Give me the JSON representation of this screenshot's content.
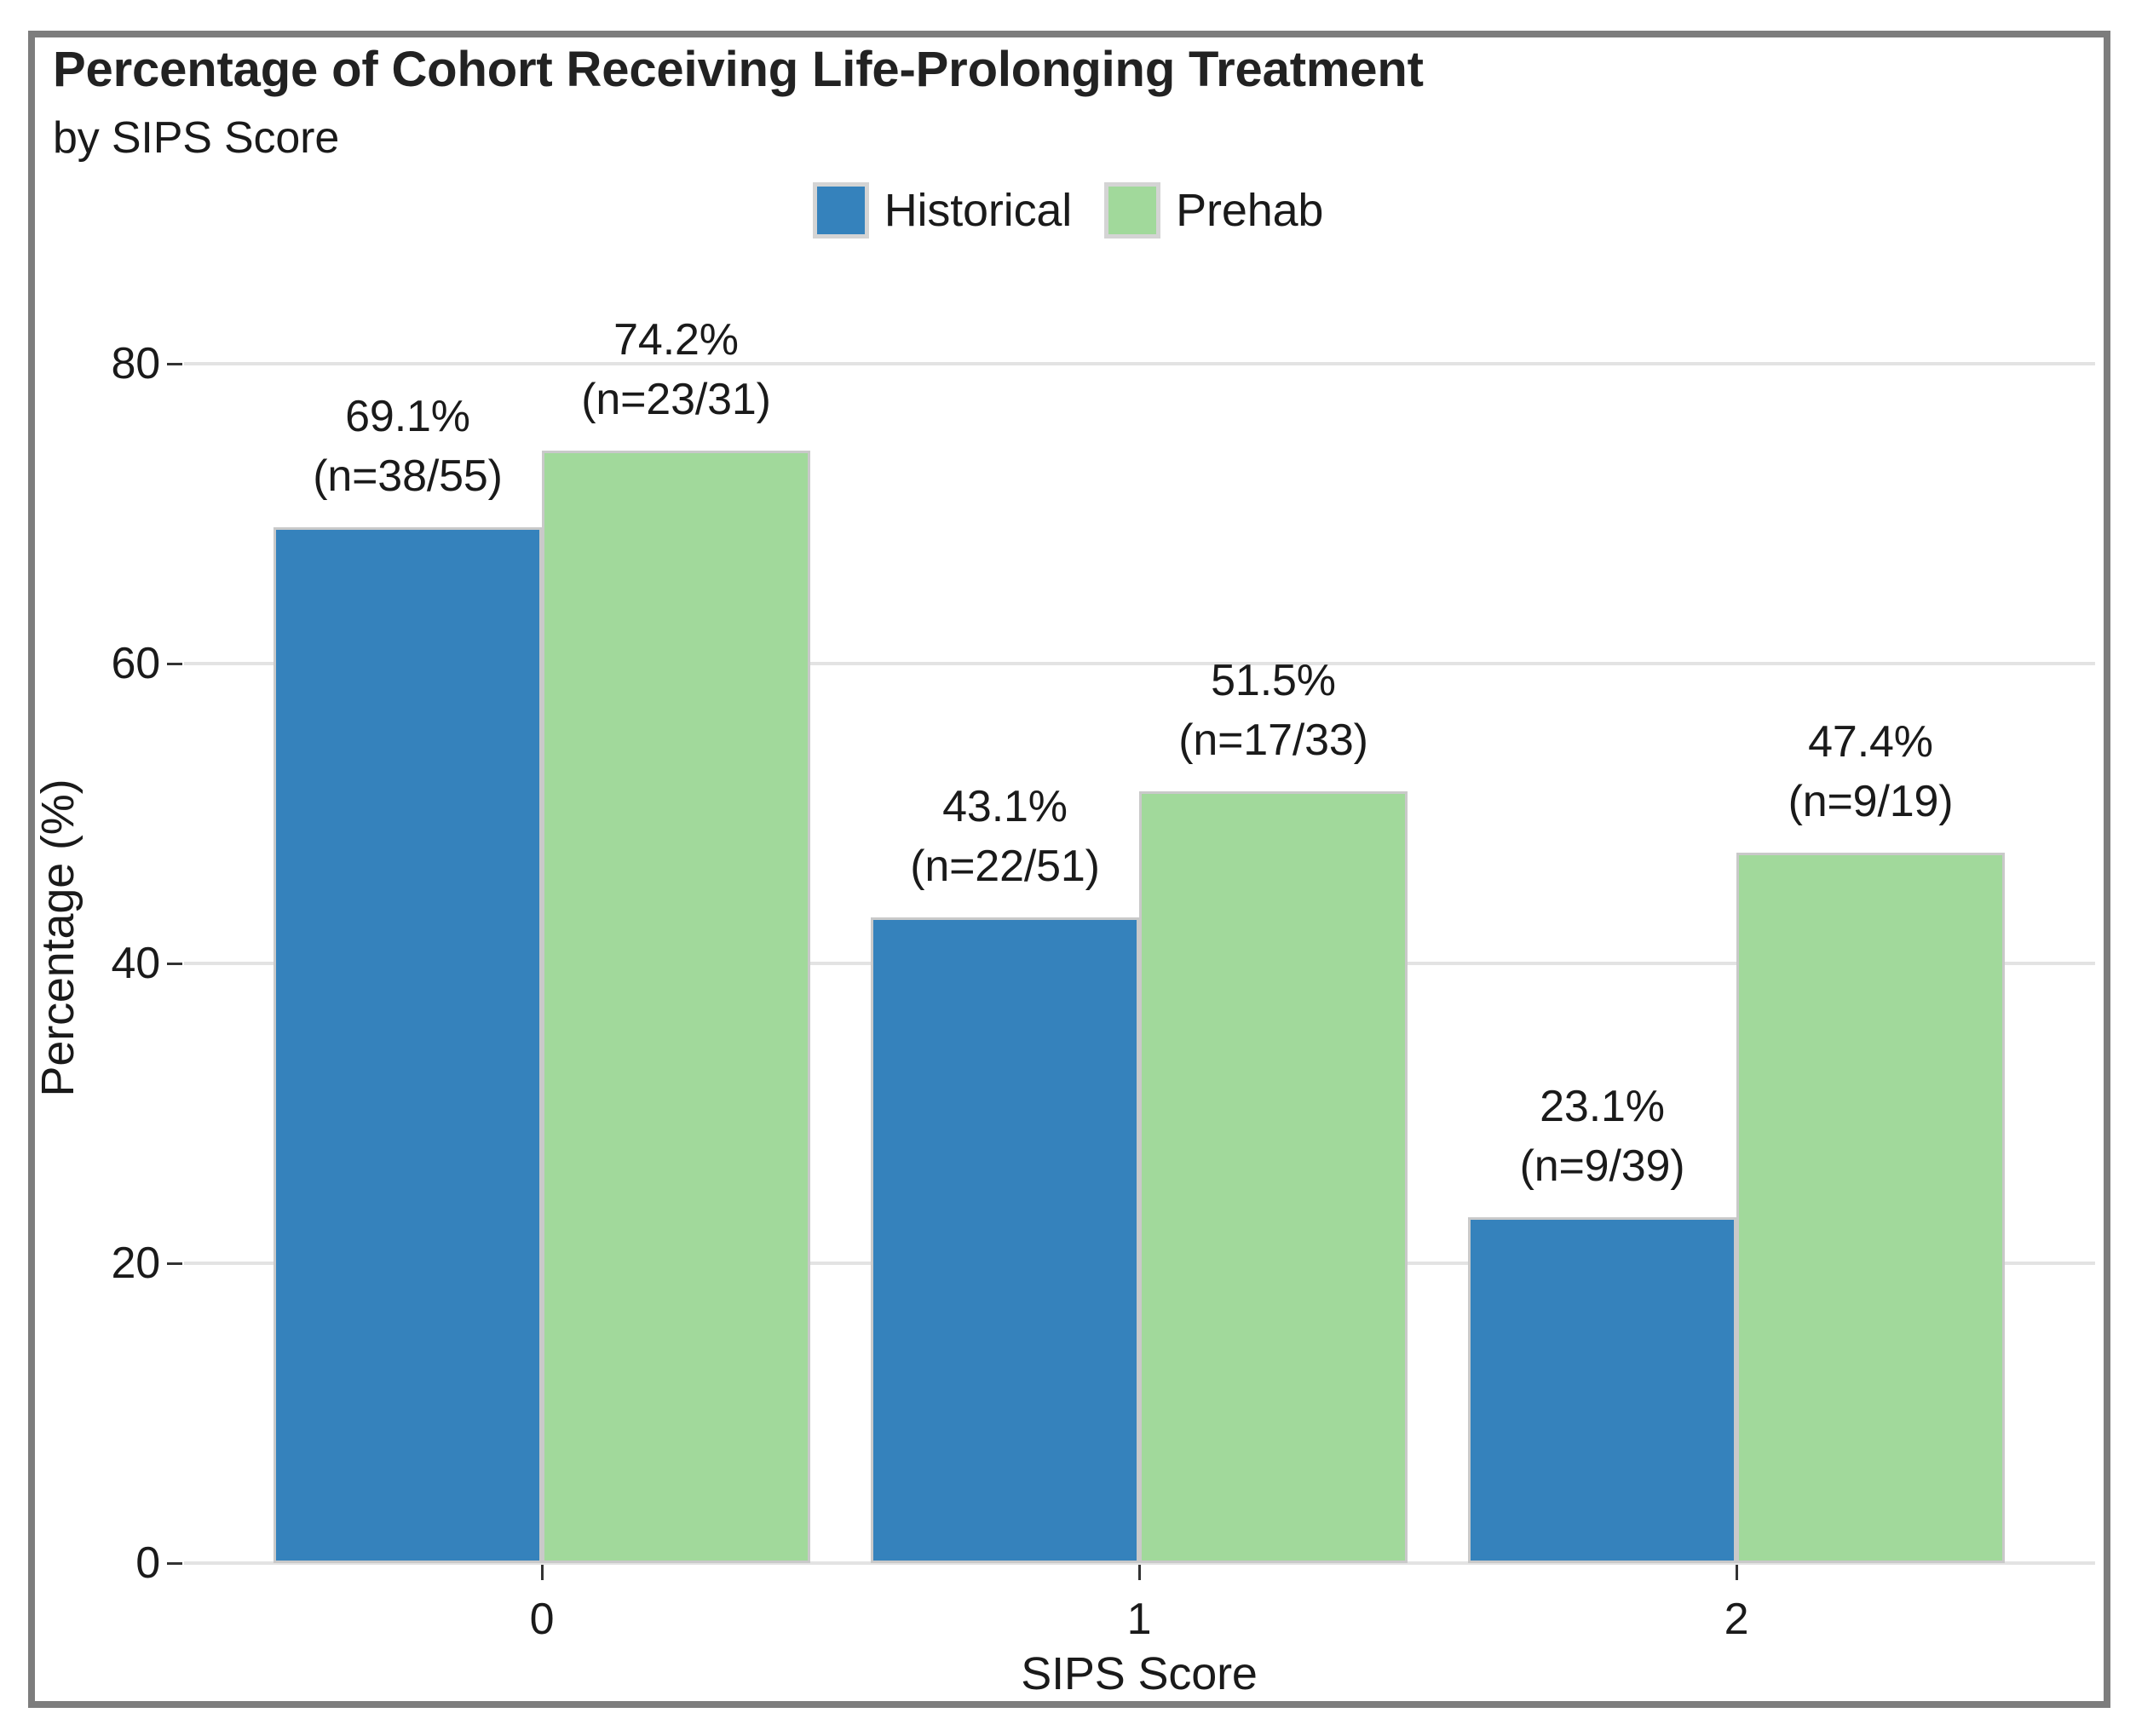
{
  "chart_data": {
    "type": "bar",
    "title": "Percentage of Cohort Receiving Life-Prolonging Treatment",
    "subtitle": "by SIPS Score",
    "xlabel": "SIPS Score",
    "ylabel": "Percentage (%)",
    "categories": [
      "0",
      "1",
      "2"
    ],
    "yticks": [
      0,
      20,
      40,
      60,
      80
    ],
    "ylim": [
      0,
      84
    ],
    "grid": true,
    "legend_position": "top",
    "series": [
      {
        "name": "Historical",
        "color": "#3582bc",
        "values": [
          69.1,
          43.1,
          23.1
        ],
        "pct_labels": [
          "69.1%",
          "43.1%",
          "23.1%"
        ],
        "n_labels": [
          "(n=38/55)",
          "(n=22/51)",
          "(n=9/39)"
        ]
      },
      {
        "name": "Prehab",
        "color": "#a1d99b",
        "values": [
          74.2,
          51.5,
          47.4
        ],
        "pct_labels": [
          "74.2%",
          "51.5%",
          "47.4%"
        ],
        "n_labels": [
          "(n=23/31)",
          "(n=17/33)",
          "(n=9/19)"
        ]
      }
    ]
  },
  "colors": {
    "text": "#1a1a1a",
    "gridline": "#e3e3e3",
    "tick": "#333333",
    "frame_border": "#7d7d7d",
    "bar_border": "#c9c9c9",
    "legend_key_border": "#d4d4d4"
  }
}
